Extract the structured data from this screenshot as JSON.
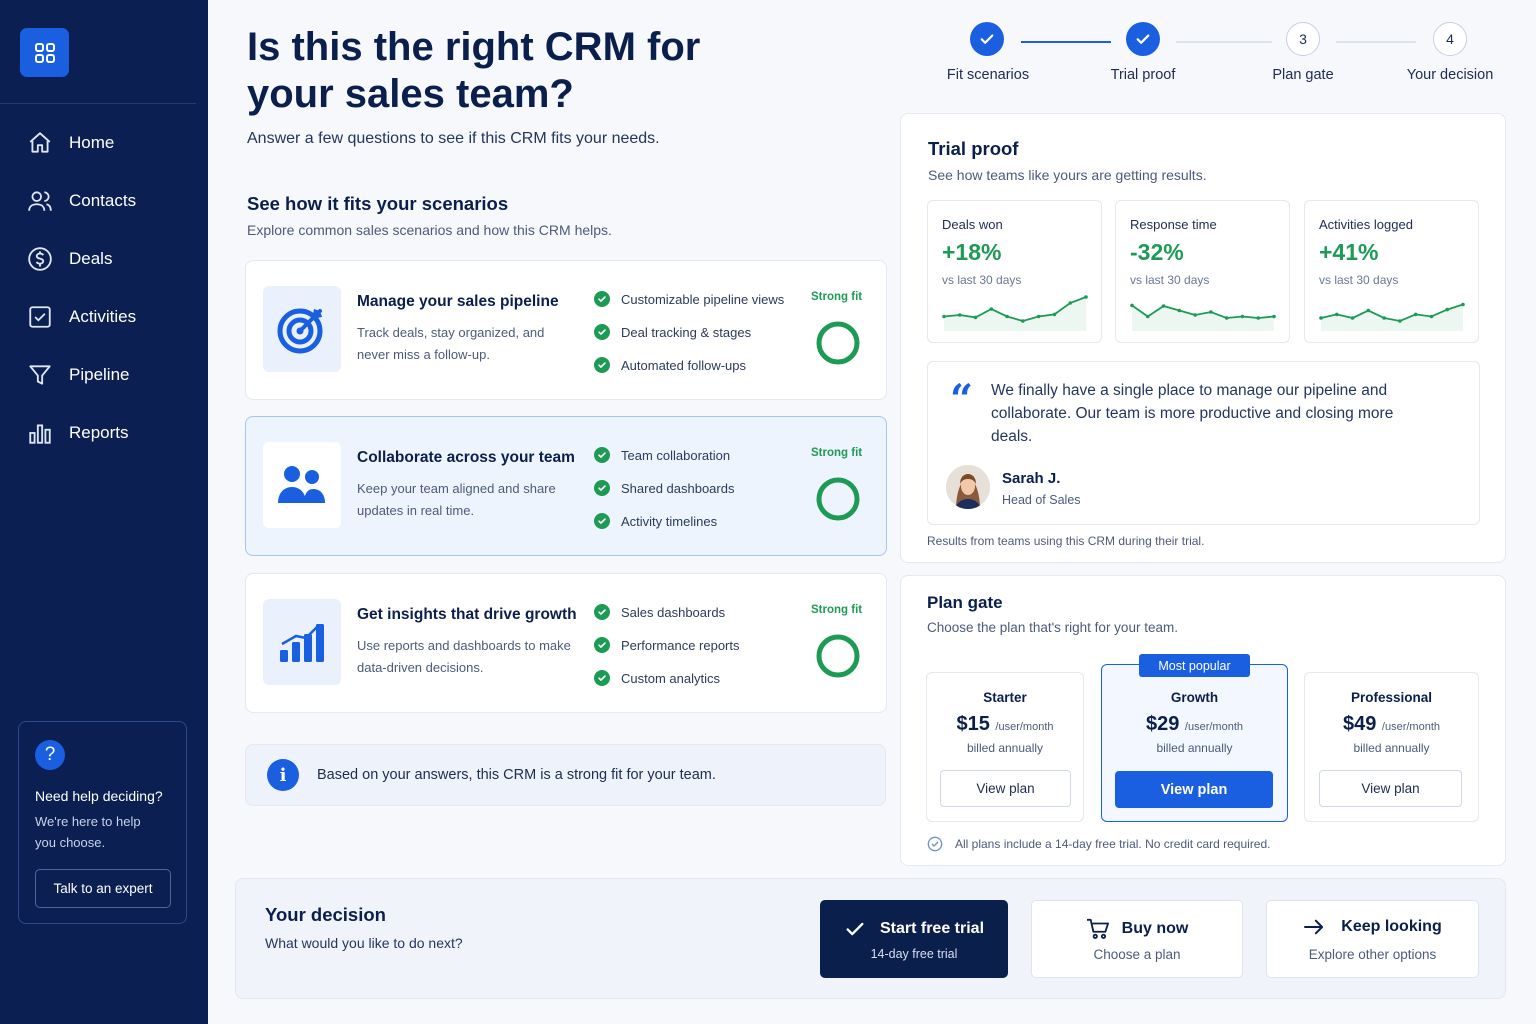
{
  "sidebar": {
    "items": [
      {
        "label": "Home",
        "icon": "home-icon"
      },
      {
        "label": "Contacts",
        "icon": "contacts-icon"
      },
      {
        "label": "Deals",
        "icon": "dollar-icon"
      },
      {
        "label": "Activities",
        "icon": "checkbox-icon"
      },
      {
        "label": "Pipeline",
        "icon": "funnel-icon"
      },
      {
        "label": "Reports",
        "icon": "bar-chart-icon"
      }
    ],
    "help": {
      "title": "Need help deciding?",
      "text": "We're here to help you choose.",
      "button": "Talk to an expert"
    }
  },
  "header": {
    "title": "Is this the right CRM for your sales team?",
    "subtitle": "Answer a few questions to see if this CRM fits your needs."
  },
  "steps": [
    {
      "label": "Fit scenarios",
      "state": "done"
    },
    {
      "label": "Trial proof",
      "state": "done"
    },
    {
      "label": "Plan gate",
      "state": "todo",
      "number": "3"
    },
    {
      "label": "Your decision",
      "state": "todo",
      "number": "4"
    }
  ],
  "scenarios": {
    "title": "See how it fits your scenarios",
    "subtitle": "Explore common sales scenarios and how this CRM helps.",
    "items": [
      {
        "title": "Manage your sales pipeline",
        "desc": "Track deals, stay organized, and never miss a follow-up.",
        "features": [
          "Customizable pipeline views",
          "Deal tracking & stages",
          "Automated follow-ups"
        ],
        "fit": "Strong fit",
        "icon": "target-icon"
      },
      {
        "title": "Collaborate across your team",
        "desc": "Keep your team aligned and share updates in real time.",
        "features": [
          "Team collaboration",
          "Shared dashboards",
          "Activity timelines"
        ],
        "fit": "Strong fit",
        "icon": "team-icon"
      },
      {
        "title": "Get insights that drive growth",
        "desc": "Use reports and dashboards to make data-driven decisions.",
        "features": [
          "Sales dashboards",
          "Performance reports",
          "Custom analytics"
        ],
        "fit": "Strong fit",
        "icon": "growth-chart-icon"
      }
    ],
    "info": "Based on your answers, this CRM is a strong fit for your team."
  },
  "trial": {
    "title": "Trial proof",
    "subtitle": "See how teams like yours are getting results.",
    "metrics": [
      {
        "label": "Deals won",
        "value": "+18%",
        "sub": "vs last 30 days",
        "spark": [
          0.35,
          0.4,
          0.32,
          0.6,
          0.35,
          0.2,
          0.35,
          0.42,
          0.8,
          1
        ]
      },
      {
        "label": "Response time",
        "value": "-32%",
        "sub": "vs last 30 days",
        "spark": [
          0.72,
          0.35,
          0.7,
          0.55,
          0.4,
          0.5,
          0.3,
          0.35,
          0.3,
          0.35
        ]
      },
      {
        "label": "Activities logged",
        "value": "+41%",
        "sub": "vs last 30 days",
        "spark": [
          0.3,
          0.42,
          0.3,
          0.55,
          0.3,
          0.2,
          0.42,
          0.35,
          0.58,
          0.75
        ]
      }
    ],
    "quote": "We finally have a single place to manage our pipeline and collaborate. Our team is more productive and closing more deals.",
    "author": "Sarah J.",
    "role": "Head of Sales",
    "footnote": "Results from teams using this CRM during their trial.",
    "accent": "#1d9b55"
  },
  "plans": {
    "title": "Plan gate",
    "subtitle": "Choose the plan that's right for your team.",
    "items": [
      {
        "name": "Starter",
        "price": "$15",
        "per": "/user/month",
        "billing": "billed annually",
        "button": "View plan"
      },
      {
        "name": "Growth",
        "price": "$29",
        "per": "/user/month",
        "billing": "billed annually",
        "button": "View plan",
        "badge": "Most popular"
      },
      {
        "name": "Professional",
        "price": "$49",
        "per": "/user/month",
        "billing": "billed annually",
        "button": "View plan"
      }
    ],
    "footnote": "All plans include a 14-day free trial. No credit card required."
  },
  "decision": {
    "title": "Your decision",
    "subtitle": "What would you like to do next?",
    "actions": [
      {
        "label": "Start free trial",
        "sub": "14-day free trial",
        "icon": "check-icon"
      },
      {
        "label": "Buy now",
        "sub": "Choose a plan",
        "icon": "cart-icon"
      },
      {
        "label": "Keep looking",
        "sub": "Explore other options",
        "icon": "arrow-right-icon"
      }
    ]
  },
  "colors": {
    "brand": "#1a5fe0",
    "sidebar": "#0b1f52",
    "success": "#1d9b55",
    "navy": "#0b1f4d"
  }
}
